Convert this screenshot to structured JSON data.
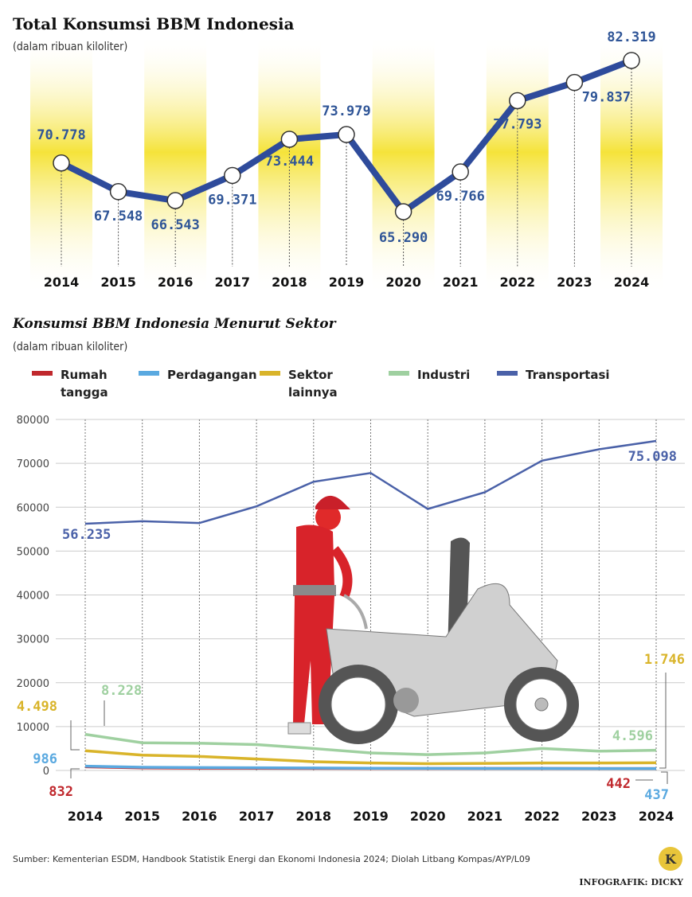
{
  "chart_data": [
    {
      "type": "line",
      "title": "Total Konsumsi BBM Indonesia",
      "subtitle": "(dalam ribuan kiloliter)",
      "categories": [
        "2014",
        "2015",
        "2016",
        "2017",
        "2018",
        "2019",
        "2020",
        "2021",
        "2022",
        "2023",
        "2024"
      ],
      "values": [
        70778,
        67548,
        66543,
        69371,
        73444,
        73979,
        65290,
        69766,
        77793,
        79837,
        82319
      ],
      "data_labels": [
        "70.778",
        "67.548",
        "66.543",
        "69.371",
        "73.444",
        "73.979",
        "65.290",
        "69.766",
        "77.793",
        "79.837",
        "82.319"
      ],
      "line_color": "#2e4b9b",
      "label_color": "#2f5597",
      "band_color": "#f5e33a",
      "grid": false
    },
    {
      "type": "line",
      "title": "Konsumsi BBM Indonesia Menurut Sektor",
      "subtitle": "(dalam ribuan kiloliter)",
      "categories": [
        "2014",
        "2015",
        "2016",
        "2017",
        "2018",
        "2019",
        "2020",
        "2021",
        "2022",
        "2023",
        "2024"
      ],
      "ylim": [
        0,
        80000
      ],
      "yticks": [
        "0",
        "10000",
        "20000",
        "30000",
        "40000",
        "50000",
        "60000",
        "70000",
        "80000"
      ],
      "grid": true,
      "legend_position": "top",
      "series": [
        {
          "name": "Rumah tangga",
          "color": "#c0282d",
          "values": [
            832,
            600,
            520,
            500,
            480,
            460,
            450,
            450,
            445,
            442,
            442
          ],
          "labels": {
            "first": "832",
            "last": "442"
          }
        },
        {
          "name": "Perdagangan",
          "color": "#5aa9e0",
          "values": [
            986,
            720,
            660,
            610,
            560,
            510,
            470,
            460,
            450,
            440,
            437
          ],
          "labels": {
            "first": "986",
            "last": "437"
          }
        },
        {
          "name": "Sektor lainnya",
          "color": "#d9b42a",
          "values": [
            4498,
            3500,
            3200,
            2600,
            2000,
            1700,
            1550,
            1600,
            1700,
            1700,
            1746
          ],
          "labels": {
            "first": "4.498",
            "last": "1.746"
          }
        },
        {
          "name": "Industri",
          "color": "#9fd0a0",
          "values": [
            8228,
            6300,
            6200,
            5900,
            5000,
            4000,
            3600,
            4000,
            5000,
            4400,
            4596
          ],
          "labels": {
            "first": "8.228",
            "last": "4.596"
          }
        },
        {
          "name": "Transportasi",
          "color": "#4a61a8",
          "values": [
            56235,
            56800,
            56400,
            60200,
            65800,
            67800,
            59600,
            63400,
            70600,
            73200,
            75098
          ],
          "labels": {
            "first": "56.235",
            "last": "75.098"
          }
        }
      ]
    }
  ],
  "legend_lines": [
    [
      "Rumah",
      "tangga"
    ],
    [
      "Perdagangan"
    ],
    [
      "Sektor",
      "lainnya"
    ],
    [
      "Industri"
    ],
    [
      "Transportasi"
    ]
  ],
  "footer": {
    "source": "Sumber: Kementerian ESDM, Handbook Statistik Energi dan Ekonomi Indonesia 2024; Diolah Litbang Kompas/AYP/L09",
    "logo_letter": "K",
    "credit": "INFOGRAFIK: DICKY"
  }
}
